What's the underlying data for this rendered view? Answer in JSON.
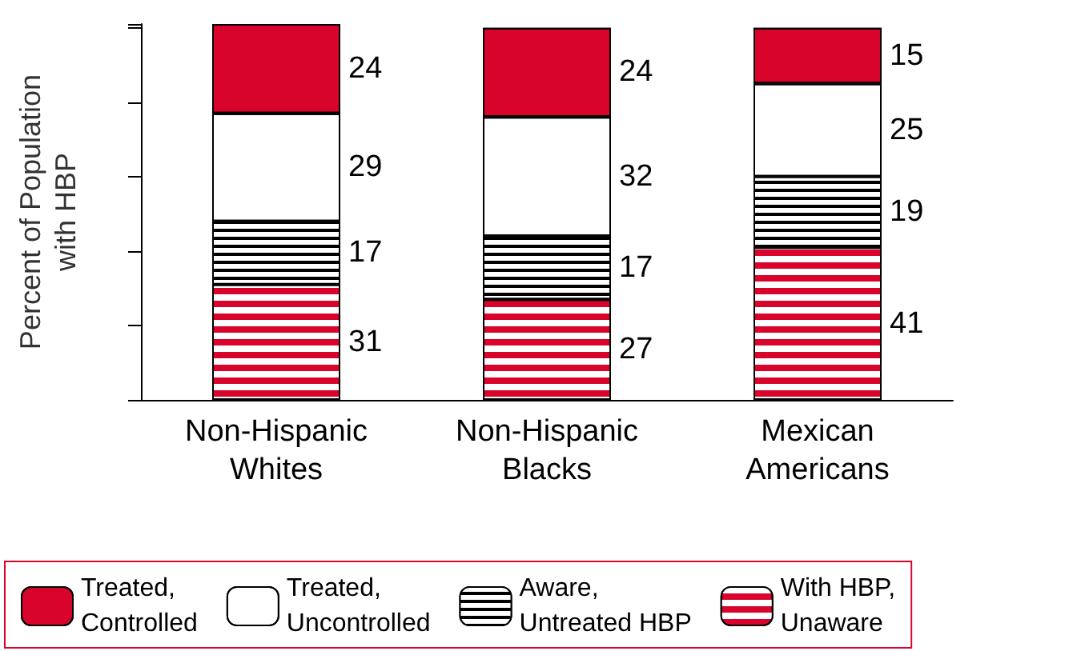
{
  "chart_data": {
    "type": "bar",
    "ylabel": "Percent of Population\nwith HBP",
    "categories": [
      "Non-Hispanic\nWhites",
      "Non-Hispanic\nBlacks",
      "Mexican\nAmericans"
    ],
    "stacked": true,
    "data_labels": true,
    "legend": "bottom",
    "tick_labels": "x",
    "grid": false,
    "series": [
      {
        "name": "With HBP,\nUnaware",
        "color": "#d9042b",
        "values": [
          31,
          27,
          41
        ]
      },
      {
        "name": "Aware,\nUntreated HBP",
        "color": "#000000",
        "values": [
          17,
          17,
          19
        ]
      },
      {
        "name": "Treated,\nUncontrolled",
        "color": "#ffffff",
        "values": [
          29,
          32,
          25
        ]
      },
      {
        "name": "Treated,\nControlled",
        "color": "#d9042b",
        "values": [
          24,
          24,
          15
        ]
      }
    ]
  }
}
